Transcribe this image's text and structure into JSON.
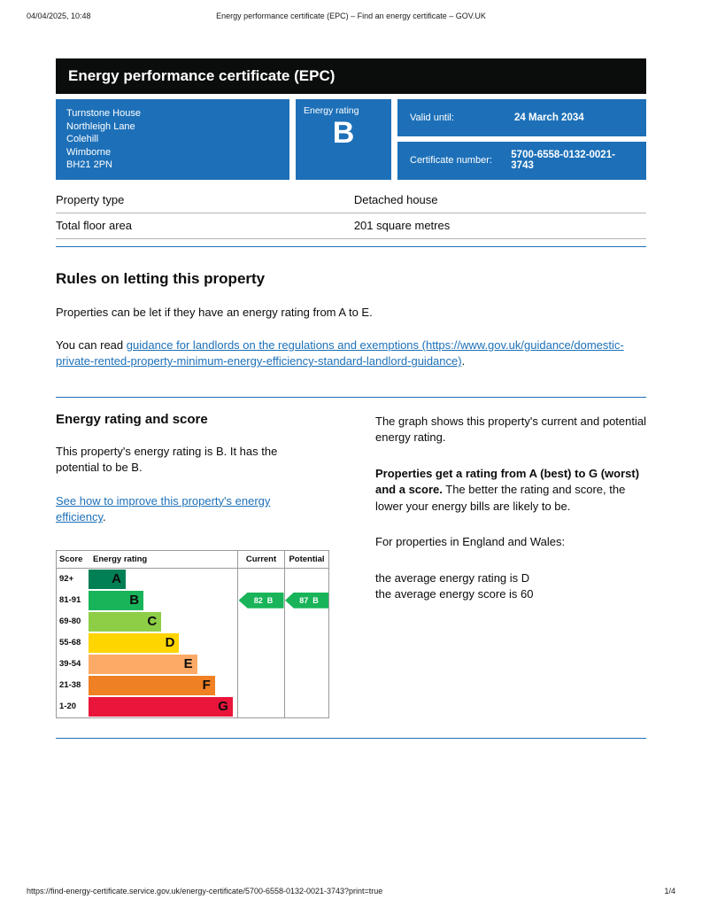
{
  "print_header": {
    "datetime": "04/04/2025, 10:48",
    "title": "Energy performance certificate (EPC) – Find an energy certificate – GOV.UK"
  },
  "banner": {
    "title": "Energy performance certificate (EPC)"
  },
  "summary": {
    "address_lines": [
      "Turnstone House",
      "Northleigh Lane",
      "Colehill",
      "Wimborne",
      "BH21 2PN"
    ],
    "energy_rating_label": "Energy rating",
    "energy_rating": "B",
    "valid_until_label": "Valid until:",
    "valid_until": "24 March 2034",
    "certificate_number_label": "Certificate number:",
    "certificate_number": "5700-6558-0132-0021-3743"
  },
  "property_table": {
    "rows": [
      {
        "label": "Property type",
        "value": "Detached house"
      },
      {
        "label": "Total floor area",
        "value": "201 square metres"
      }
    ]
  },
  "letting_rules": {
    "heading": "Rules on letting this property",
    "paragraph1": "Properties can be let if they have an energy rating from A to E.",
    "paragraph2_prefix": "You can read ",
    "link_text": "guidance for landlords on the regulations and exemptions (https://www.gov.uk/guidance/domestic-private-rented-property-minimum-energy-efficiency-standard-landlord-guidance)",
    "paragraph2_suffix": "."
  },
  "rating_section": {
    "heading": "Energy rating and score",
    "paragraph1": "This property's energy rating is B. It has the potential to be B.",
    "improve_link_text": "See how to improve this property's energy efficiency",
    "improve_link_suffix": ".",
    "right_column": {
      "p1": "The graph shows this property's current and potential energy rating.",
      "p2_bold": "Properties get a rating from A (best) to G (worst) and a score.",
      "p2_rest": " The better the rating and score, the lower your energy bills are likely to be.",
      "p3": "For properties in England and Wales:",
      "p4_line1": "the average energy rating is D",
      "p4_line2": "the average energy score is 60"
    }
  },
  "chart_data": {
    "type": "epc-bands",
    "columns": {
      "score": "Score",
      "rating": "Energy rating",
      "current": "Current",
      "potential": "Potential"
    },
    "bands": [
      {
        "range": "92+",
        "letter": "A",
        "color": "#008054",
        "width_pct": 22
      },
      {
        "range": "81-91",
        "letter": "B",
        "color": "#19b459",
        "width_pct": 34
      },
      {
        "range": "69-80",
        "letter": "C",
        "color": "#8dce46",
        "width_pct": 46
      },
      {
        "range": "55-68",
        "letter": "D",
        "color": "#ffd500",
        "width_pct": 58
      },
      {
        "range": "39-54",
        "letter": "E",
        "color": "#fcaa65",
        "width_pct": 70
      },
      {
        "range": "21-38",
        "letter": "F",
        "color": "#ef8023",
        "width_pct": 82
      },
      {
        "range": "1-20",
        "letter": "G",
        "color": "#e9153b",
        "width_pct": 94
      }
    ],
    "current": {
      "score": "82",
      "letter": "B",
      "color": "#19b459"
    },
    "potential": {
      "score": "87",
      "letter": "B",
      "color": "#19b459"
    }
  },
  "footer": {
    "url": "https://find-energy-certificate.service.gov.uk/energy-certificate/5700-6558-0132-0021-3743?print=true",
    "page": "1/4"
  }
}
